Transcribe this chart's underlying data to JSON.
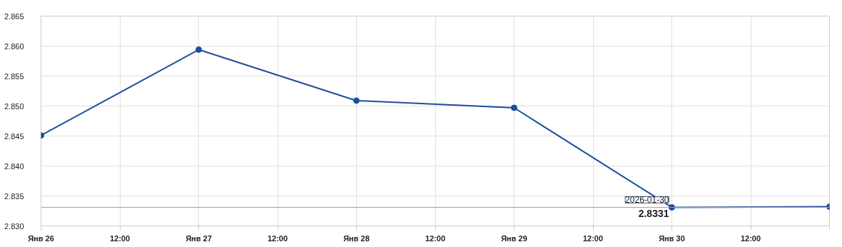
{
  "chart_data": {
    "type": "line",
    "x": [
      "2026-01-26",
      "2026-01-27",
      "2026-01-28",
      "2026-01-29",
      "2026-01-30",
      "2026-01-31"
    ],
    "series": [
      {
        "color": "#1c4f9c",
        "values": [
          2.8451,
          2.8594,
          2.8509,
          2.8497,
          2.8331,
          2.8332
        ]
      }
    ],
    "xlim": [
      "2026-01-26",
      "2026-01-31"
    ],
    "xticks": [
      {
        "value": "2026-01-26",
        "label": "Янв 26"
      },
      {
        "value": "2026-01-26T12:00",
        "label": "12:00"
      },
      {
        "value": "2026-01-27",
        "label": "Янв 27"
      },
      {
        "value": "2026-01-27T12:00",
        "label": "12:00"
      },
      {
        "value": "2026-01-28",
        "label": "Янв 28"
      },
      {
        "value": "2026-01-28T12:00",
        "label": "12:00"
      },
      {
        "value": "2026-01-29",
        "label": "Янв 29"
      },
      {
        "value": "2026-01-29T12:00",
        "label": "12:00"
      },
      {
        "value": "2026-01-30",
        "label": "Янв 30"
      },
      {
        "value": "2026-01-30T12:00",
        "label": "12:00"
      },
      {
        "value": "2026-01-31",
        "label": null
      }
    ],
    "ylim": [
      2.83,
      2.865
    ],
    "yticks": [
      {
        "value": 2.83,
        "label": "2.830"
      },
      {
        "value": 2.835,
        "label": "2.835"
      },
      {
        "value": 2.84,
        "label": "2.840"
      },
      {
        "value": 2.845,
        "label": "2.845"
      },
      {
        "value": 2.85,
        "label": "2.850"
      },
      {
        "value": 2.855,
        "label": "2.855"
      },
      {
        "value": 2.86,
        "label": "2.860"
      },
      {
        "value": 2.865,
        "label": "2.865"
      }
    ],
    "ref_lines": [
      {
        "axis": "y",
        "value": 2.8331,
        "color": "#f08080"
      }
    ],
    "annotations": [
      {
        "text": "2026-01-30",
        "x": "2026-01-30",
        "y": 2.8331
      },
      {
        "text": "2.8331",
        "x": "2026-01-30",
        "y": 2.8331
      }
    ],
    "grid": true,
    "marker": "circle",
    "line_style": "solid"
  }
}
